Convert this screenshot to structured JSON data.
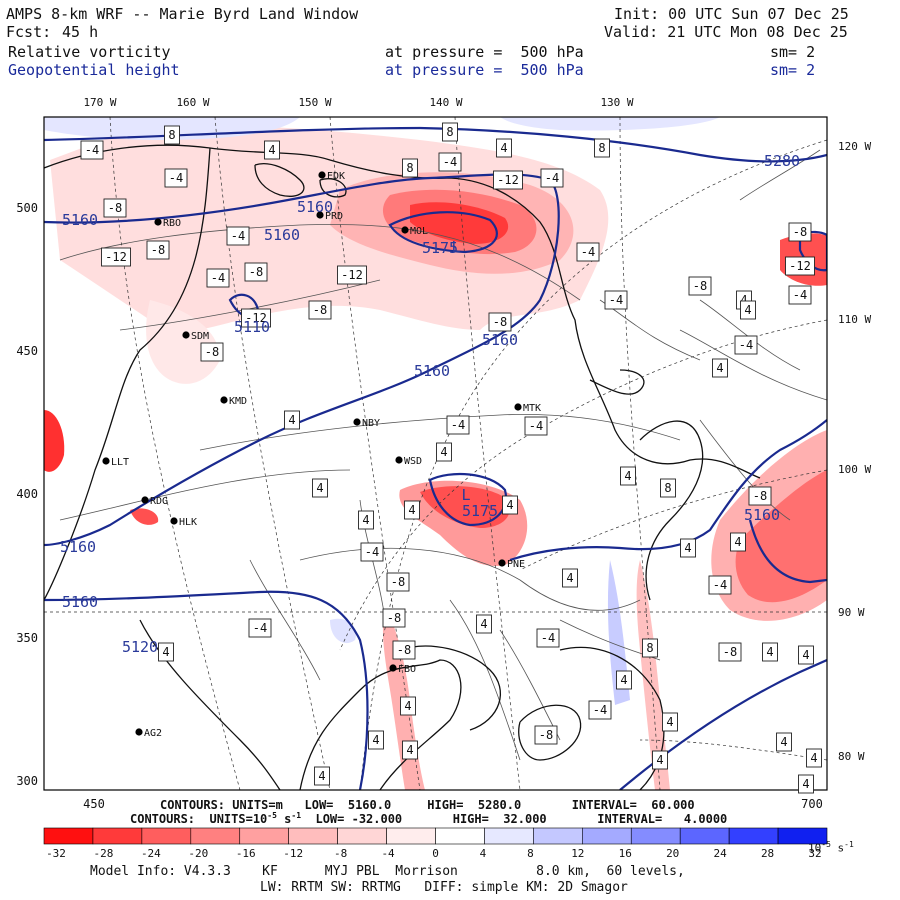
{
  "header": {
    "title": "AMPS 8-km WRF -- Marie Byrd Land Window",
    "init": "Init: 00 UTC Sun 07 Dec 25",
    "fcst_label": "Fcst:",
    "fcst_value": "45 h",
    "valid": "Valid: 21 UTC Mon 08 Dec 25",
    "field1": "Relative vorticity",
    "field1_level": "at pressure =  500 hPa",
    "field1_sm": "sm= 2",
    "field2": "Geopotential height",
    "field2_level": "at pressure =  500 hPa",
    "field2_sm": "sm= 2"
  },
  "map": {
    "lon_top": [
      "170 W",
      "160 W",
      "150 W",
      "140 W",
      "130 W"
    ],
    "lon_right": [
      "120 W",
      "110 W",
      "100 W",
      "90 W",
      "80 W"
    ],
    "y_ticks": [
      "500",
      "450",
      "400",
      "350",
      "300"
    ],
    "x_ticks": [
      "450",
      "700"
    ],
    "stations": [
      {
        "id": "EDK"
      },
      {
        "id": "PRD"
      },
      {
        "id": "RBO"
      },
      {
        "id": "MOL"
      },
      {
        "id": "SDM"
      },
      {
        "id": "KMD"
      },
      {
        "id": "NBY"
      },
      {
        "id": "MTK"
      },
      {
        "id": "LLT"
      },
      {
        "id": "WSD"
      },
      {
        "id": "RDG"
      },
      {
        "id": "HLK"
      },
      {
        "id": "PNE"
      },
      {
        "id": "FBO"
      },
      {
        "id": "AG2"
      }
    ],
    "height_labels": [
      "5280",
      "5160",
      "5160",
      "5160",
      "5160",
      "5160",
      "5160",
      "5160",
      "5160",
      "5120",
      "5110",
      "5175"
    ],
    "height_extrema": [
      "L",
      "L"
    ],
    "vort_labels": [
      "8",
      "-4",
      "8",
      "8",
      "4",
      "8",
      "-4",
      "-4",
      "-8",
      "-12",
      "-4",
      "4",
      "-12",
      "-8",
      "-12",
      "-4",
      "-8",
      "-4",
      "-8",
      "-12",
      "-8",
      "-4",
      "-4",
      "-8",
      "4",
      "-4",
      "-4",
      "4",
      "4",
      "4",
      "4",
      "4",
      "-4",
      "-8",
      "-8",
      "-4",
      "-4",
      "4",
      "-8",
      "4",
      "4",
      "4",
      "4",
      "-4",
      "4",
      "4",
      "4",
      "4",
      "-8",
      "4",
      "-4",
      "-8",
      "-12",
      "-4",
      "-8",
      "4",
      "4",
      "8",
      "4",
      "-4",
      "-8",
      "4",
      "-8",
      "4",
      "8",
      "4",
      "4",
      "4",
      "4",
      "4",
      "4"
    ]
  },
  "legend_contours": {
    "height": "CONTOURS: UNITS=m   LOW=  5160.0     HIGH=  5280.0       INTERVAL=  60.000",
    "vort_prefix": "CONTOURS:  UNITS=10",
    "vort_exp": "-5",
    "vort_unit": " s",
    "vort_unit_exp": "-1",
    "vort_rest": "  LOW= -32.000       HIGH=  32.000       INTERVAL=   4.0000"
  },
  "colorbar": {
    "labels": [
      "-32",
      "-28",
      "-24",
      "-20",
      "-16",
      "-12",
      "-8",
      "-4",
      "0",
      "4",
      "8",
      "12",
      "16",
      "20",
      "24",
      "28",
      "32"
    ],
    "unit": "10",
    "unit_exp": "-5",
    "unit_s": " s",
    "unit_s_exp": "-1",
    "colors": [
      "#ff1010",
      "#ff3a3a",
      "#ff5e5e",
      "#ff8080",
      "#ffa0a0",
      "#ffbdbd",
      "#ffd6d6",
      "#ffeded",
      "#ffffff",
      "#ffffff",
      "#e6e8ff",
      "#c4c8ff",
      "#a4aaff",
      "#848cff",
      "#5c66ff",
      "#3340ff",
      "#1020f0"
    ]
  },
  "footer": {
    "line1": "Model Info: V4.3.3    KF      MYJ PBL  Morrison          8.0 km,  60 levels,",
    "line2": "LW: RRTM SW: RRTMG   DIFF: simple KM: 2D Smagor"
  }
}
